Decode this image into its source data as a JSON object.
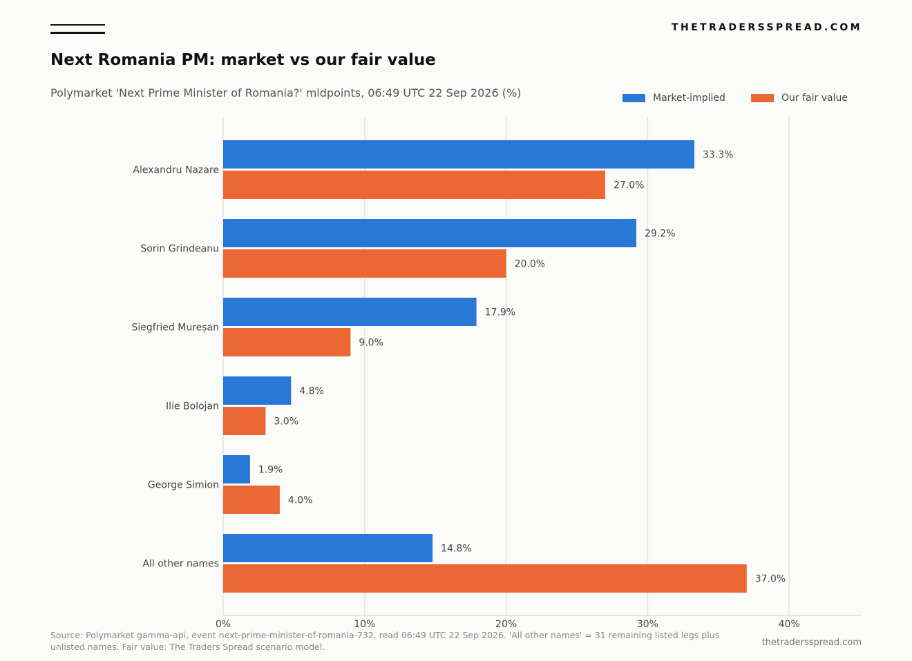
{
  "brand": "THETRADERSSPREAD.COM",
  "footer": {
    "source": "Source: Polymarket gamma-api, event next-prime-minister-of-romania-732, read 06:49 UTC 22 Sep 2026. 'All other names' = 31 remaining listed legs plus unlisted names. Fair value: The Traders Spread scenario model.",
    "site": "thetradersspread.com"
  },
  "chart_data": {
    "type": "bar",
    "orientation": "horizontal",
    "title": "Next Romania PM: market vs our fair value",
    "subtitle": "Polymarket 'Next Prime Minister of Romania?' midpoints, 06:49 UTC 22 Sep 2026 (%)",
    "categories": [
      "Alexandru Nazare",
      "Sorin Grindeanu",
      "Siegfried Mureșan",
      "Ilie Bolojan",
      "George Simion",
      "All other names"
    ],
    "series": [
      {
        "name": "Market-implied",
        "color": "#2a78d6",
        "values": [
          33.3,
          29.2,
          17.9,
          4.8,
          1.9,
          14.8
        ],
        "labels": [
          "33.3%",
          "29.2%",
          "17.9%",
          "4.8%",
          "1.9%",
          "14.8%"
        ]
      },
      {
        "name": "Our fair value",
        "color": "#eb6834",
        "values": [
          27.0,
          20.0,
          9.0,
          3.0,
          4.0,
          37.0
        ],
        "labels": [
          "27.0%",
          "20.0%",
          "9.0%",
          "3.0%",
          "4.0%",
          "37.0%"
        ]
      }
    ],
    "xlim": [
      0,
      45
    ],
    "xticks": [
      0,
      10,
      20,
      30,
      40
    ],
    "xtick_labels": [
      "0%",
      "10%",
      "20%",
      "30%",
      "40%"
    ],
    "grid": "vertical",
    "legend_position": "top-right"
  }
}
